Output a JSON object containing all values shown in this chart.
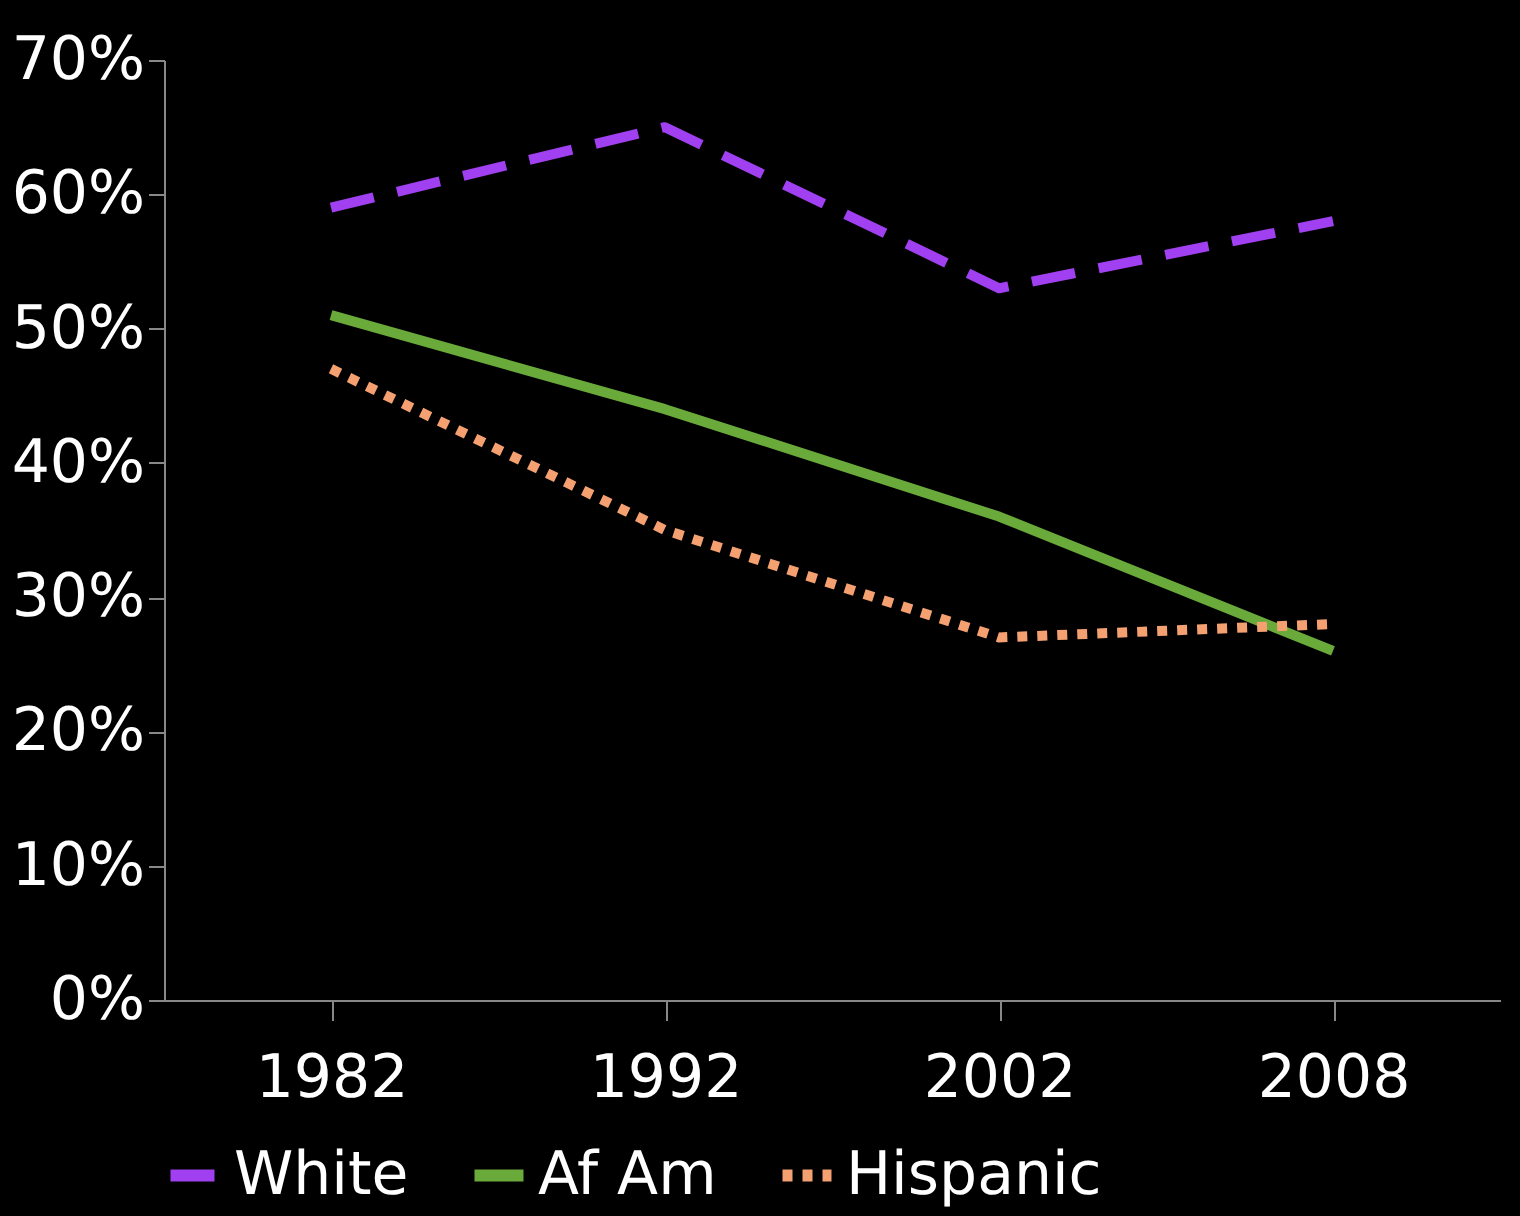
{
  "chart_data": {
    "type": "line",
    "categories": [
      "1982",
      "1992",
      "2002",
      "2008"
    ],
    "series": [
      {
        "name": "White",
        "color": "#a040f0",
        "line_style": "dashed",
        "values": [
          59,
          65,
          53,
          58
        ]
      },
      {
        "name": "Af Am",
        "color": "#6aaa3a",
        "line_style": "solid",
        "values": [
          51,
          44,
          36,
          26
        ]
      },
      {
        "name": "Hispanic",
        "color": "#f4a070",
        "line_style": "dotted",
        "values": [
          47,
          35,
          27,
          28
        ]
      }
    ],
    "ylim": [
      0,
      70
    ],
    "yticks": [
      {
        "value": 0,
        "label": "0%"
      },
      {
        "value": 10,
        "label": "10%"
      },
      {
        "value": 20,
        "label": "20%"
      },
      {
        "value": 30,
        "label": "30%"
      },
      {
        "value": 40,
        "label": "40%"
      },
      {
        "value": 50,
        "label": "50%"
      },
      {
        "value": 60,
        "label": "60%"
      },
      {
        "value": 70,
        "label": "70%"
      }
    ],
    "grid": false,
    "legend": "bottom",
    "marker": "none"
  }
}
